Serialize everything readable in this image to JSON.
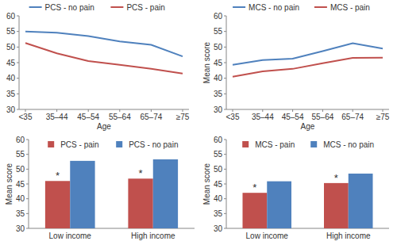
{
  "chart_data": [
    {
      "type": "line",
      "categories": [
        "<35",
        "35–44",
        "45–54",
        "55–64",
        "65–74",
        "≥75"
      ],
      "x_label": "Age",
      "ylim": [
        30,
        60
      ],
      "yticks": [
        30,
        35,
        40,
        45,
        50,
        55,
        60
      ],
      "grid": false,
      "legend": "top",
      "series": [
        {
          "name": "PCS - no pain",
          "color": "#4f81bd",
          "values": [
            55,
            54.6,
            53.5,
            51.8,
            50.7,
            47
          ]
        },
        {
          "name": "PCS - pain",
          "color": "#c0504d",
          "values": [
            51.3,
            48,
            45.5,
            44.3,
            43,
            41.5
          ]
        }
      ]
    },
    {
      "type": "line",
      "categories": [
        "<35",
        "35–44",
        "45–54",
        "55–64",
        "65–74",
        "≥75"
      ],
      "x_label": "Age",
      "y_label": "Mean score",
      "ylim": [
        30,
        60
      ],
      "yticks": [
        30,
        35,
        40,
        45,
        50,
        55,
        60
      ],
      "grid": false,
      "legend": "top",
      "series": [
        {
          "name": "MCS - no pain",
          "color": "#4f81bd",
          "values": [
            44.3,
            45.8,
            46.3,
            48.7,
            51.2,
            49.5
          ]
        },
        {
          "name": "MCS - pain",
          "color": "#c0504d",
          "values": [
            40.5,
            42.2,
            43,
            44.8,
            46.5,
            46.6
          ]
        }
      ]
    },
    {
      "type": "bar",
      "categories": [
        "Low income",
        "High income"
      ],
      "y_label": "Mean score",
      "ylim": [
        30,
        60
      ],
      "yticks": [
        30,
        35,
        40,
        45,
        50,
        55,
        60
      ],
      "grid": false,
      "legend": "top-right",
      "series": [
        {
          "name": "PCS - pain",
          "color": "#c0504d",
          "values": [
            46,
            46.8
          ]
        },
        {
          "name": "PCS - no pain",
          "color": "#4f81bd",
          "values": [
            52.8,
            53.3
          ]
        }
      ],
      "annotations": [
        {
          "text": "*",
          "x": "Low income",
          "series": "PCS - pain"
        },
        {
          "text": "*",
          "x": "High income",
          "series": "PCS - pain"
        }
      ]
    },
    {
      "type": "bar",
      "categories": [
        "Low income",
        "High income"
      ],
      "y_label": "Mean score",
      "ylim": [
        30,
        60
      ],
      "yticks": [
        30,
        35,
        40,
        45,
        50,
        55,
        60
      ],
      "grid": false,
      "legend": "top-right",
      "series": [
        {
          "name": "MCS - pain",
          "color": "#c0504d",
          "values": [
            42,
            45.3
          ]
        },
        {
          "name": "MCS - no pain",
          "color": "#4f81bd",
          "values": [
            45.9,
            48.5
          ]
        }
      ],
      "annotations": [
        {
          "text": "*",
          "x": "Low income",
          "series": "MCS - pain"
        },
        {
          "text": "*",
          "x": "High income",
          "series": "MCS - pain"
        }
      ]
    }
  ]
}
